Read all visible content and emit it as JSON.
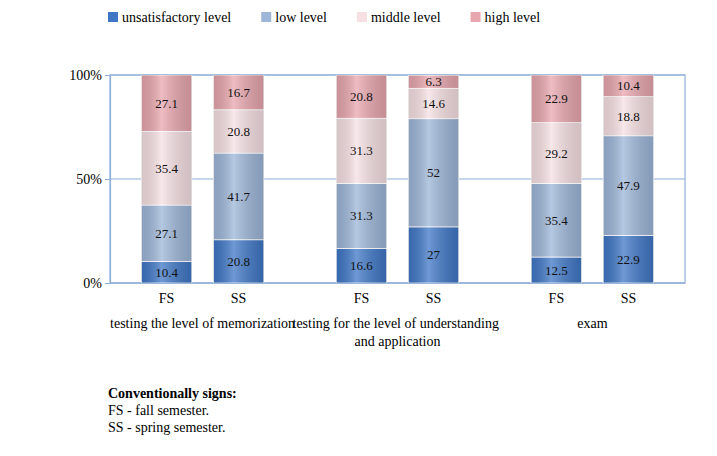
{
  "chart_data": {
    "type": "bar",
    "stacked": true,
    "data_labels": true,
    "grid": true,
    "legend": "top",
    "categories": [
      "FS",
      "SS",
      "FS",
      "SS",
      "FS",
      "SS"
    ],
    "category_groups": [
      "testing the level of memorization",
      "testing for the level of understanding and application",
      "exam"
    ],
    "series": [
      {
        "name": "unsatisfactory level",
        "color": "#3f77c6",
        "values": [
          10.4,
          20.8,
          16.6,
          27,
          12.5,
          22.9
        ]
      },
      {
        "name": "low level",
        "color": "#9db6d8",
        "values": [
          27.1,
          41.7,
          31.3,
          52,
          35.4,
          47.9
        ]
      },
      {
        "name": "middle level",
        "color": "#f6e0e3",
        "values": [
          35.4,
          20.8,
          31.3,
          14.6,
          29.2,
          18.8
        ]
      },
      {
        "name": "high level",
        "color": "#e8a6ae",
        "values": [
          27.1,
          16.7,
          20.8,
          6.3,
          22.9,
          10.4
        ]
      }
    ],
    "ylim": [
      0,
      100
    ],
    "yticks": [
      {
        "value": 0,
        "label": "0%"
      },
      {
        "value": 50,
        "label": "50%"
      },
      {
        "value": 100,
        "label": "100%"
      }
    ],
    "annotations": [
      "Conventionally signs:",
      "FS - fall semester.",
      "SS - spring semester."
    ]
  }
}
